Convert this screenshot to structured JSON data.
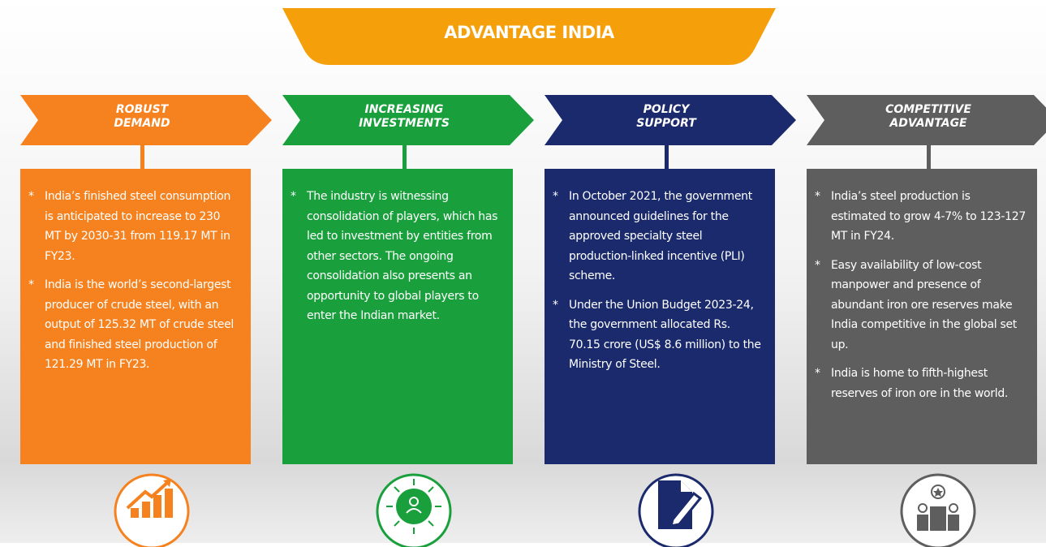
{
  "title": "ADVANTAGE INDIA",
  "columns": [
    {
      "heading": [
        "ROBUST",
        "DEMAND"
      ],
      "color": "#f5821f",
      "bullets": [
        "India’s finished steel consumption is anticipated to increase to 230 MT by 2030-31 from 119.17 MT in FY23.",
        "India is the world’s second-largest producer of crude steel, with an output of 125.32 MT of crude steel and finished steel production of 121.29 MT in FY23."
      ]
    },
    {
      "heading": [
        "INCREASING",
        "INVESTMENTS"
      ],
      "color": "#19a03c",
      "bullets": [
        "The industry is witnessing consolidation of players, which has led to investment by entities from other sectors. The ongoing consolidation also presents an opportunity to global players to enter the Indian market."
      ]
    },
    {
      "heading": [
        "POLICY",
        "SUPPORT"
      ],
      "color": "#1a2a6c",
      "bullets": [
        "In October 2021, the government announced guidelines for the approved specialty steel production-linked incentive (PLI) scheme.",
        "Under the Union Budget 2023-24, the government allocated Rs. 70.15 crore (US$ 8.6 million) to the Ministry of Steel."
      ]
    },
    {
      "heading": [
        "COMPETITIVE",
        "ADVANTAGE"
      ],
      "color": "#5e5e5e",
      "bullets": [
        "India’s steel production is estimated to grow 4-7% to 123-127 MT in FY24.",
        "Easy availability of low-cost manpower and presence of abundant iron ore reserves make India competitive in the global set up.",
        "India is home to fifth-highest reserves of iron ore in the world."
      ]
    }
  ]
}
